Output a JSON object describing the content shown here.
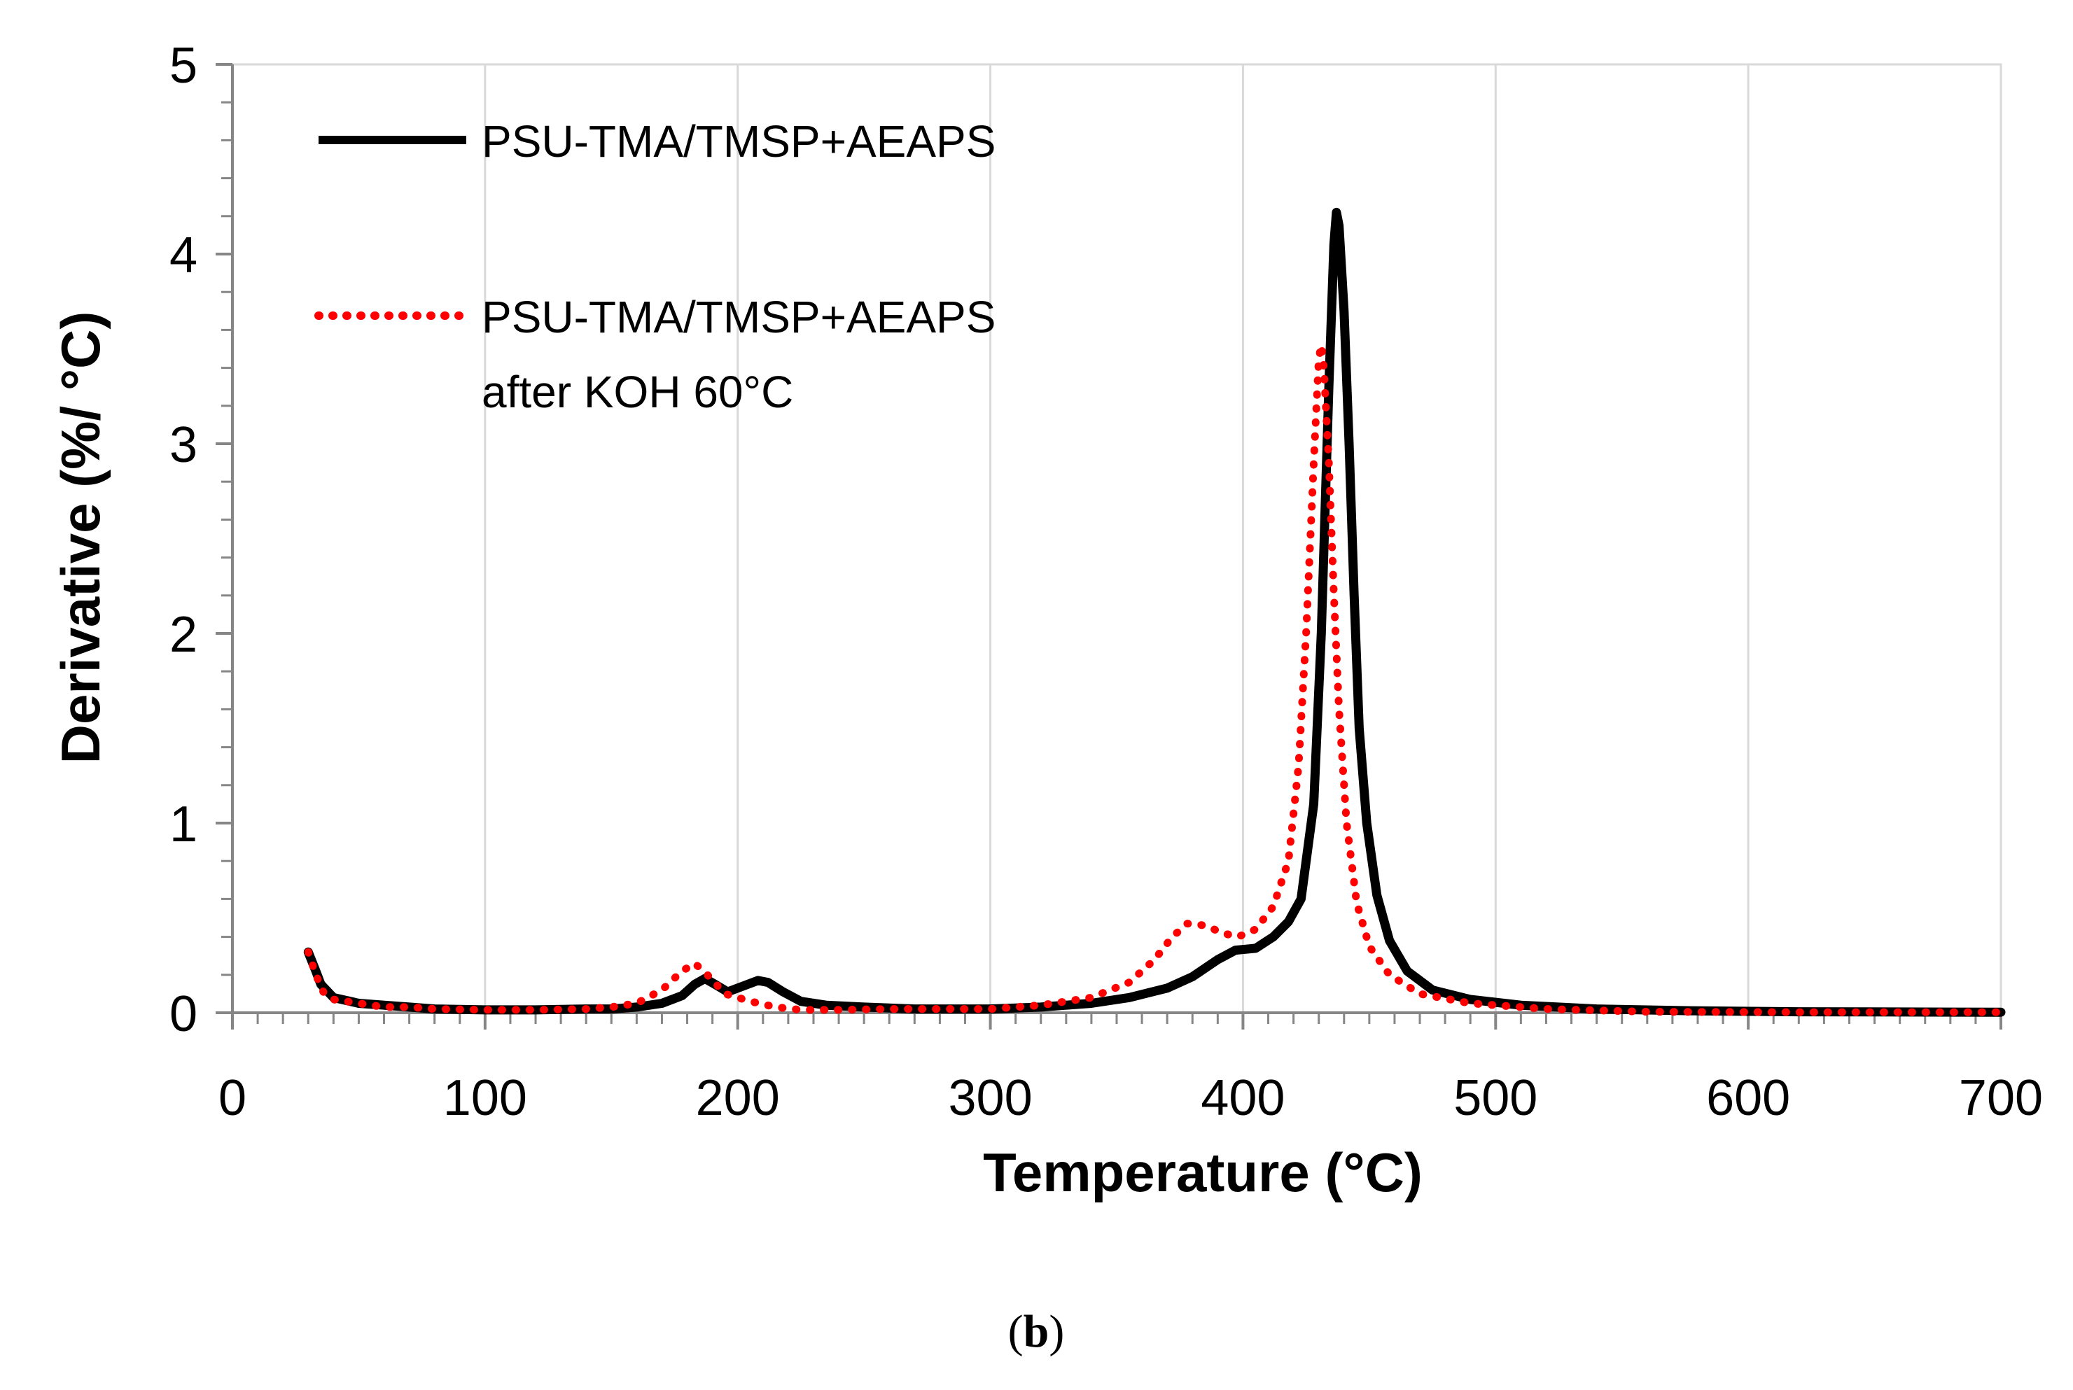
{
  "chart_data": {
    "type": "line",
    "title": "",
    "xlabel": "Temperature (°C)",
    "ylabel": "Derivative (%/ °C)",
    "xlim": [
      0,
      700
    ],
    "ylim": [
      0,
      5
    ],
    "x_ticks": [
      "0",
      "100",
      "200",
      "300",
      "400",
      "500",
      "600",
      "700"
    ],
    "y_ticks": [
      "0",
      "1",
      "2",
      "3",
      "4",
      "5"
    ],
    "x_tick_values": [
      0,
      100,
      200,
      300,
      400,
      500,
      600,
      700
    ],
    "y_tick_values": [
      0,
      1,
      2,
      3,
      4,
      5
    ],
    "grid": "vertical",
    "legend_position": "top-left",
    "caption_open": "(",
    "caption_letter": "b",
    "caption_close": ")",
    "series": [
      {
        "name": "PSU-TMA/TMSP+AEAPS",
        "legend_lines": [
          "PSU-TMA/TMSP+AEAPS"
        ],
        "color": "#000000",
        "style": "solid",
        "points": [
          [
            30,
            0.32
          ],
          [
            33,
            0.22
          ],
          [
            35,
            0.15
          ],
          [
            40,
            0.08
          ],
          [
            50,
            0.05
          ],
          [
            60,
            0.04
          ],
          [
            70,
            0.03
          ],
          [
            80,
            0.02
          ],
          [
            100,
            0.015
          ],
          [
            120,
            0.015
          ],
          [
            140,
            0.02
          ],
          [
            150,
            0.02
          ],
          [
            160,
            0.03
          ],
          [
            170,
            0.05
          ],
          [
            178,
            0.09
          ],
          [
            183,
            0.15
          ],
          [
            187,
            0.18
          ],
          [
            191,
            0.15
          ],
          [
            196,
            0.11
          ],
          [
            202,
            0.14
          ],
          [
            208,
            0.17
          ],
          [
            212,
            0.16
          ],
          [
            218,
            0.11
          ],
          [
            225,
            0.06
          ],
          [
            235,
            0.04
          ],
          [
            250,
            0.03
          ],
          [
            270,
            0.02
          ],
          [
            300,
            0.02
          ],
          [
            320,
            0.03
          ],
          [
            340,
            0.05
          ],
          [
            355,
            0.08
          ],
          [
            370,
            0.13
          ],
          [
            380,
            0.19
          ],
          [
            390,
            0.28
          ],
          [
            397,
            0.33
          ],
          [
            405,
            0.34
          ],
          [
            412,
            0.4
          ],
          [
            418,
            0.48
          ],
          [
            423,
            0.6
          ],
          [
            428,
            1.1
          ],
          [
            431,
            2.0
          ],
          [
            434,
            3.3
          ],
          [
            436,
            4.05
          ],
          [
            437,
            4.22
          ],
          [
            438,
            4.15
          ],
          [
            440,
            3.7
          ],
          [
            442,
            3.0
          ],
          [
            444,
            2.2
          ],
          [
            446,
            1.5
          ],
          [
            449,
            1.0
          ],
          [
            453,
            0.62
          ],
          [
            458,
            0.38
          ],
          [
            465,
            0.22
          ],
          [
            475,
            0.12
          ],
          [
            490,
            0.07
          ],
          [
            510,
            0.04
          ],
          [
            540,
            0.02
          ],
          [
            580,
            0.01
          ],
          [
            620,
            0.005
          ],
          [
            700,
            0.003
          ]
        ]
      },
      {
        "name": "PSU-TMA/TMSP+AEAPS after KOH 60°C",
        "legend_lines": [
          "PSU-TMA/TMSP+AEAPS",
          "after KOH 60°C"
        ],
        "color": "#ff0000",
        "style": "dotted",
        "points": [
          [
            30,
            0.32
          ],
          [
            33,
            0.2
          ],
          [
            36,
            0.11
          ],
          [
            40,
            0.07
          ],
          [
            50,
            0.05
          ],
          [
            60,
            0.03
          ],
          [
            70,
            0.03
          ],
          [
            80,
            0.02
          ],
          [
            100,
            0.015
          ],
          [
            120,
            0.015
          ],
          [
            140,
            0.02
          ],
          [
            150,
            0.03
          ],
          [
            160,
            0.05
          ],
          [
            170,
            0.12
          ],
          [
            178,
            0.22
          ],
          [
            183,
            0.26
          ],
          [
            188,
            0.2
          ],
          [
            195,
            0.1
          ],
          [
            205,
            0.06
          ],
          [
            215,
            0.03
          ],
          [
            225,
            0.015
          ],
          [
            240,
            0.015
          ],
          [
            260,
            0.02
          ],
          [
            300,
            0.02
          ],
          [
            320,
            0.04
          ],
          [
            340,
            0.08
          ],
          [
            355,
            0.16
          ],
          [
            365,
            0.28
          ],
          [
            372,
            0.4
          ],
          [
            378,
            0.47
          ],
          [
            385,
            0.46
          ],
          [
            392,
            0.42
          ],
          [
            398,
            0.4
          ],
          [
            405,
            0.44
          ],
          [
            412,
            0.56
          ],
          [
            418,
            0.8
          ],
          [
            422,
            1.3
          ],
          [
            425,
            2.0
          ],
          [
            428,
            2.9
          ],
          [
            430,
            3.45
          ],
          [
            431,
            3.52
          ],
          [
            432,
            3.4
          ],
          [
            434,
            2.9
          ],
          [
            436,
            2.2
          ],
          [
            438,
            1.6
          ],
          [
            441,
            1.0
          ],
          [
            445,
            0.58
          ],
          [
            450,
            0.35
          ],
          [
            458,
            0.2
          ],
          [
            470,
            0.1
          ],
          [
            490,
            0.05
          ],
          [
            520,
            0.02
          ],
          [
            560,
            0.005
          ],
          [
            620,
            0.003
          ],
          [
            700,
            0.003
          ]
        ]
      }
    ]
  }
}
